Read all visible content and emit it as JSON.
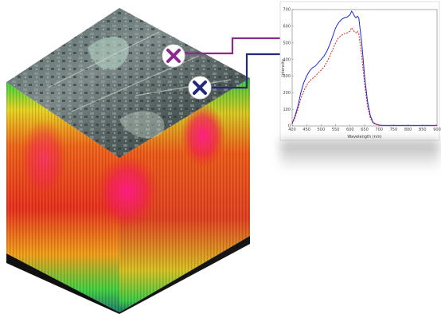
{
  "colors": {
    "marker_1": "#8a2a8e",
    "marker_2": "#22287a",
    "series_blue": "#1a2bd6",
    "series_red": "#e0201a"
  },
  "markers": [
    {
      "icon": "x-cross-icon"
    },
    {
      "icon": "x-cross-icon"
    }
  ],
  "chart_data": {
    "type": "line",
    "xlabel": "Wavelength (nm)",
    "ylabel": "Intensity",
    "xlim": [
      400,
      900
    ],
    "ylim": [
      0,
      700
    ],
    "xticks": [
      400,
      450,
      500,
      550,
      600,
      650,
      700,
      750,
      800,
      850,
      900
    ],
    "yticks": [
      0,
      100,
      200,
      300,
      400,
      500,
      600,
      700
    ],
    "grid": false,
    "series": [
      {
        "color": "#1a2bd6",
        "style": "solid",
        "x": [
          400,
          410,
          420,
          430,
          440,
          450,
          460,
          470,
          480,
          490,
          500,
          510,
          520,
          530,
          540,
          550,
          560,
          570,
          580,
          590,
          600,
          605,
          610,
          615,
          620,
          625,
          630,
          640,
          650,
          660,
          670,
          680,
          690,
          700,
          710,
          720,
          730,
          750,
          800,
          850,
          900
        ],
        "y": [
          15,
          60,
          120,
          200,
          260,
          300,
          330,
          350,
          360,
          380,
          400,
          420,
          450,
          490,
          540,
          590,
          620,
          640,
          650,
          655,
          670,
          690,
          680,
          660,
          650,
          660,
          650,
          500,
          300,
          150,
          60,
          20,
          10,
          5,
          4,
          3,
          3,
          3,
          3,
          3,
          3
        ]
      },
      {
        "color": "#e0201a",
        "style": "dashed",
        "x": [
          400,
          410,
          420,
          430,
          440,
          450,
          460,
          470,
          480,
          490,
          500,
          510,
          520,
          530,
          540,
          550,
          560,
          570,
          580,
          590,
          600,
          605,
          610,
          615,
          620,
          625,
          630,
          640,
          650,
          660,
          670,
          680,
          690,
          700,
          710,
          720,
          730,
          750,
          800,
          850,
          900
        ],
        "y": [
          12,
          50,
          100,
          165,
          210,
          245,
          270,
          285,
          300,
          320,
          335,
          355,
          385,
          420,
          460,
          500,
          530,
          545,
          555,
          560,
          570,
          590,
          580,
          565,
          560,
          570,
          555,
          420,
          250,
          120,
          45,
          15,
          8,
          4,
          3,
          3,
          3,
          3,
          3,
          3,
          3
        ]
      }
    ]
  }
}
